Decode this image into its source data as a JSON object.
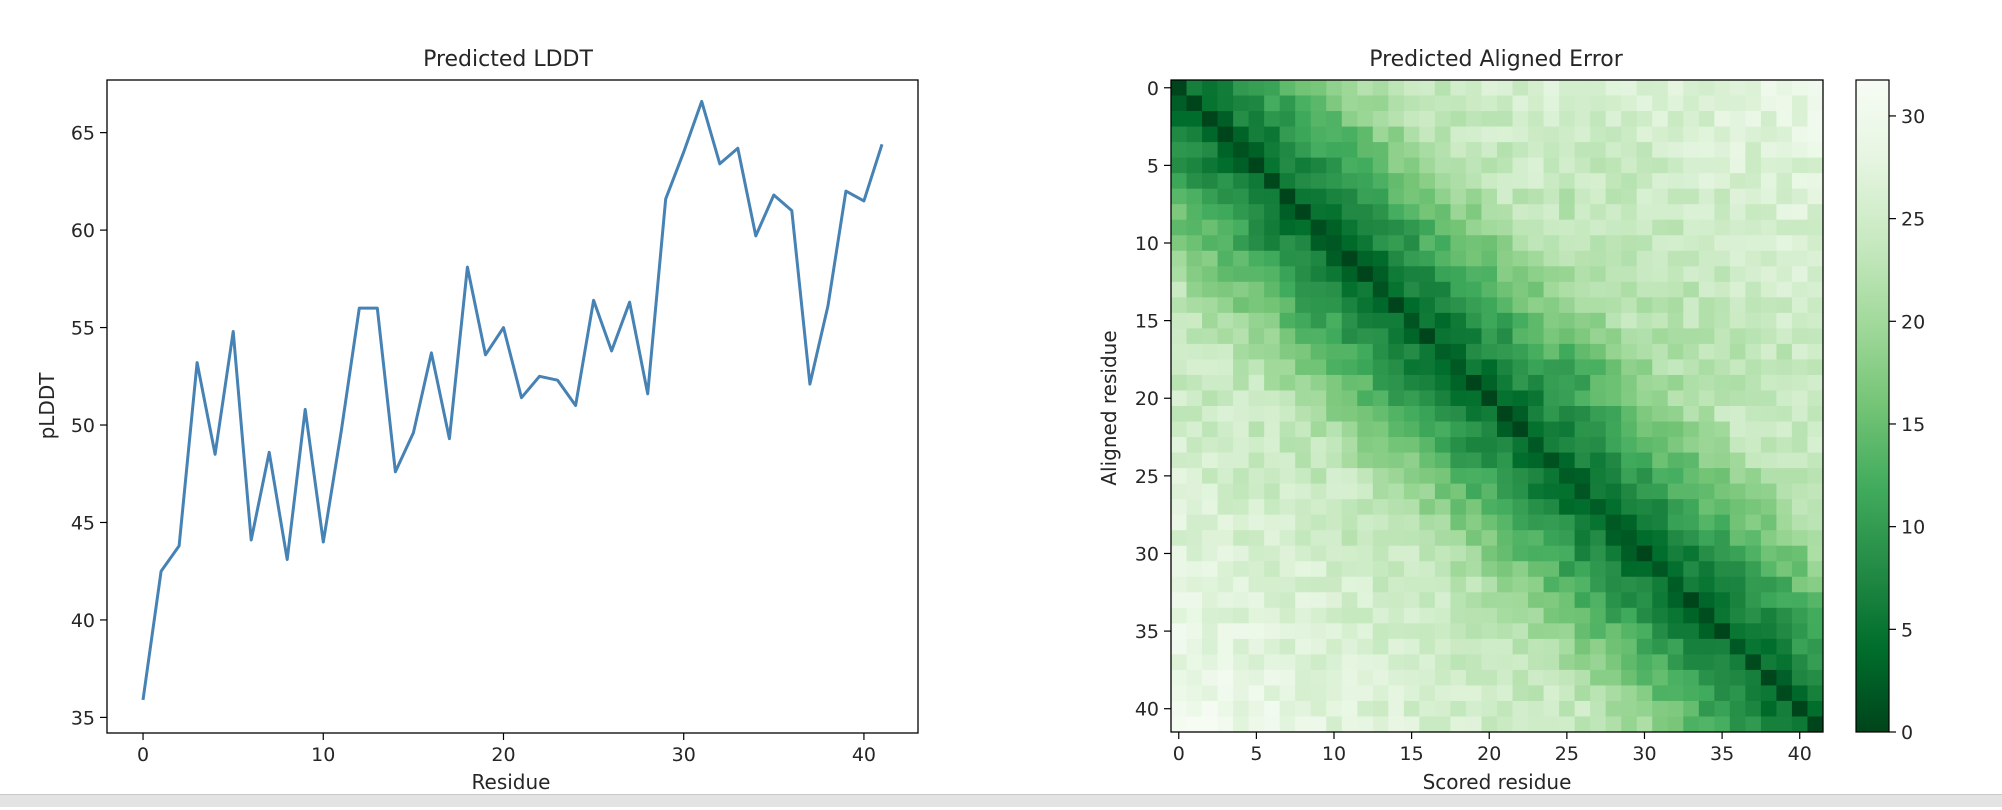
{
  "chart_data": [
    {
      "type": "line",
      "title": "Predicted LDDT",
      "xlabel": "Residue",
      "ylabel": "pLDDT",
      "xlim": [
        -2,
        43
      ],
      "ylim": [
        34.2,
        67.7
      ],
      "xticks": [
        0,
        10,
        20,
        30,
        40
      ],
      "yticks": [
        35,
        40,
        45,
        50,
        55,
        60,
        65
      ],
      "grid": false,
      "colors": {
        "line": "#4682b4"
      },
      "series": [
        {
          "x": [
            0,
            1,
            2,
            3,
            4,
            5,
            6,
            7,
            8,
            9,
            10,
            11,
            12,
            13,
            14,
            15,
            16,
            17,
            18,
            19,
            20,
            21,
            22,
            23,
            24,
            25,
            26,
            27,
            28,
            29,
            30,
            31,
            32,
            33,
            34,
            35,
            36,
            37,
            38,
            39,
            40,
            41
          ],
          "values": [
            35.9,
            42.5,
            43.8,
            53.2,
            48.5,
            54.8,
            44.1,
            48.6,
            43.1,
            50.8,
            44.0,
            49.7,
            56.0,
            56.0,
            47.6,
            49.6,
            53.7,
            49.3,
            58.1,
            53.6,
            55.0,
            51.4,
            52.5,
            52.3,
            51.0,
            56.4,
            53.8,
            56.3,
            51.6,
            61.6,
            64.0,
            66.6,
            63.4,
            64.2,
            59.7,
            61.8,
            61.0,
            52.1,
            56.1,
            62.0,
            61.5,
            64.4
          ]
        }
      ]
    },
    {
      "type": "heatmap",
      "title": "Predicted Aligned Error",
      "xlabel": "Scored residue",
      "ylabel": "Aligned residue",
      "size": 42,
      "xticks": [
        0,
        5,
        10,
        15,
        20,
        25,
        30,
        35,
        40
      ],
      "yticks": [
        0,
        5,
        10,
        15,
        20,
        25,
        30,
        35,
        40
      ],
      "colormap": "Greens_r",
      "colorbar": {
        "min": 0,
        "max": 31.75,
        "ticks": [
          0,
          5,
          10,
          15,
          20,
          25,
          30
        ]
      },
      "grid": false
    }
  ]
}
